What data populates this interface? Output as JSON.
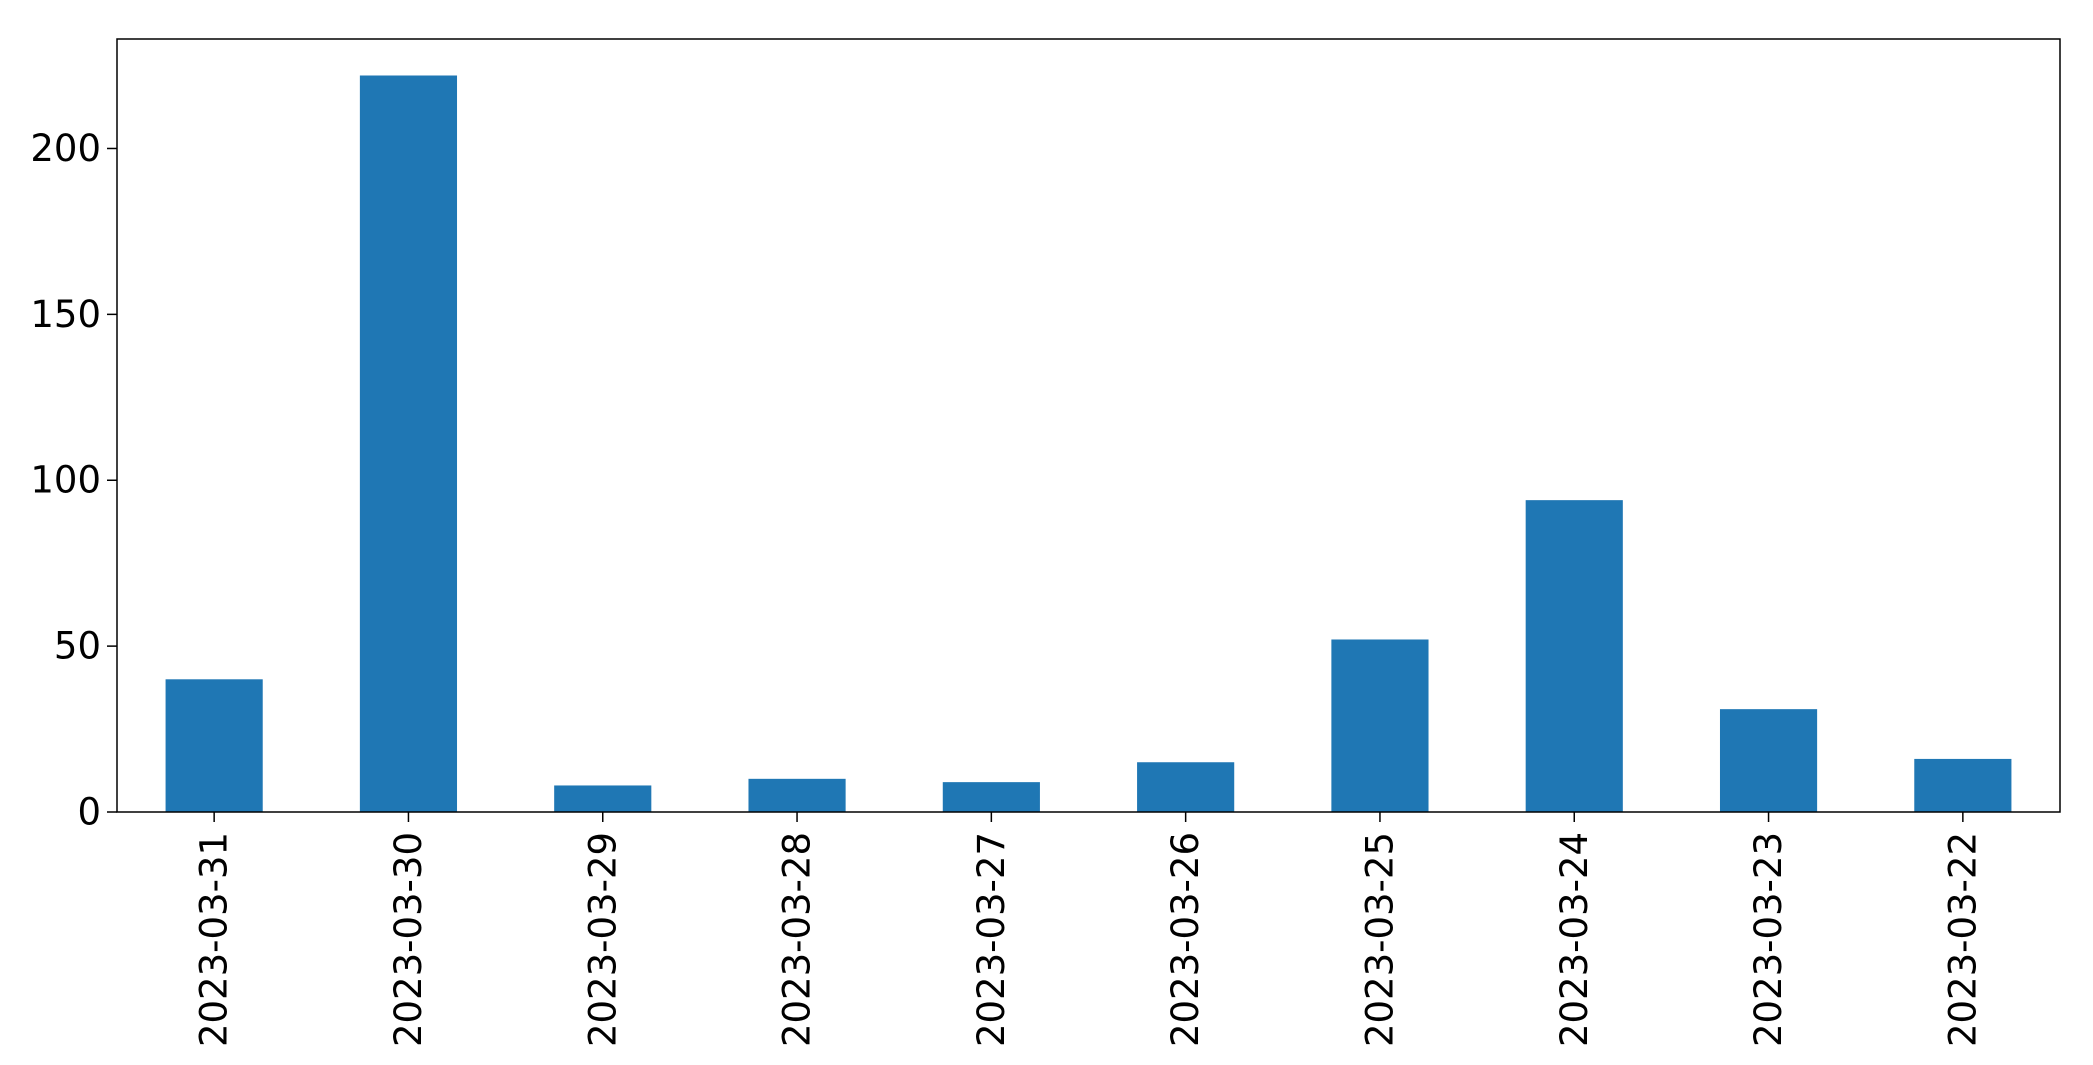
{
  "chart_data": {
    "type": "bar",
    "categories": [
      "2023-03-31",
      "2023-03-30",
      "2023-03-29",
      "2023-03-28",
      "2023-03-27",
      "2023-03-26",
      "2023-03-25",
      "2023-03-24",
      "2023-03-23",
      "2023-03-22"
    ],
    "values": [
      40,
      222,
      8,
      10,
      9,
      15,
      52,
      94,
      31,
      16
    ],
    "title": "",
    "xlabel": "",
    "ylabel": "",
    "ylim": [
      0,
      233
    ],
    "yticks": [
      0,
      50,
      100,
      150,
      200
    ],
    "grid": false,
    "legend": "none",
    "bar_color": "#1f77b4"
  }
}
